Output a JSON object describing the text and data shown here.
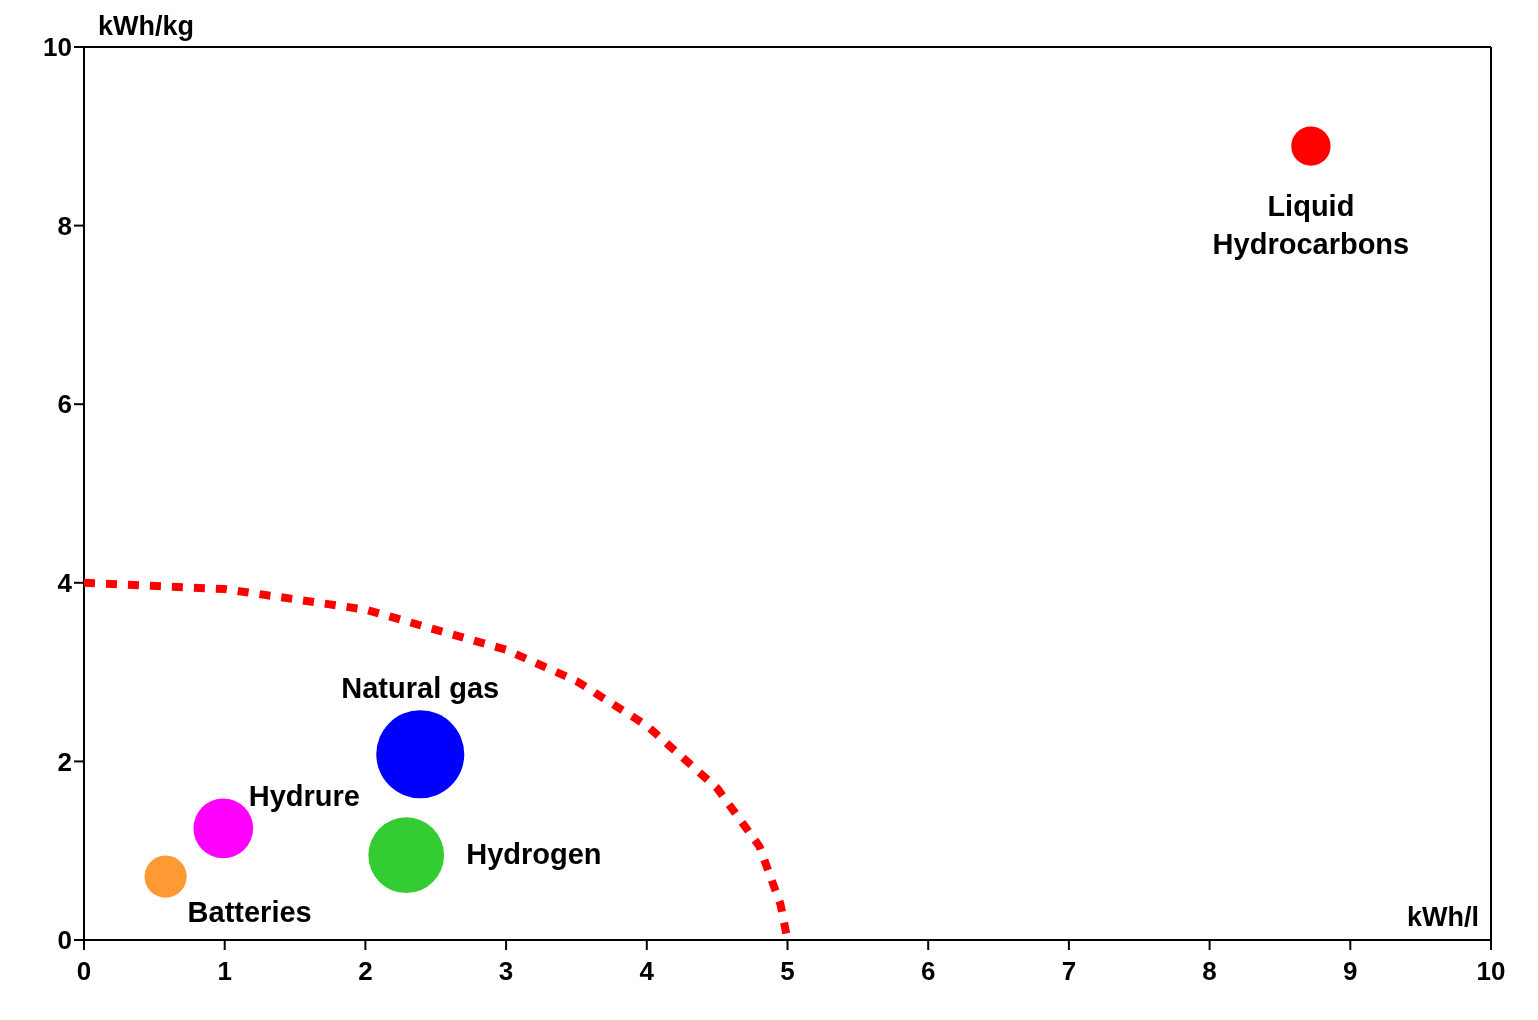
{
  "chart_data": {
    "type": "bubble",
    "xlabel": "kWh/l",
    "ylabel": "kWh/kg",
    "xlim": [
      0,
      10
    ],
    "ylim": [
      0,
      10
    ],
    "xticks": [
      0,
      1,
      2,
      3,
      4,
      5,
      6,
      7,
      8,
      9,
      10
    ],
    "yticks": [
      0,
      2,
      4,
      6,
      8,
      10
    ],
    "series": [
      {
        "name": "Liquid Hydrocarbons",
        "color": "#ff0000",
        "x": [
          8.72
        ],
        "values": [
          8.89
        ],
        "sizes": [
          0.2
        ]
      },
      {
        "name": "Natural gas",
        "color": "#0000ff",
        "x": [
          2.39
        ],
        "values": [
          2.08
        ],
        "sizes": [
          1
        ]
      },
      {
        "name": "Hydrure",
        "color": "#ff00ff",
        "x": [
          0.99
        ],
        "values": [
          1.25
        ],
        "sizes": [
          0.46
        ]
      },
      {
        "name": "Hydrogen",
        "color": "#33cc33",
        "x": [
          2.29
        ],
        "values": [
          0.95
        ],
        "sizes": [
          0.74
        ]
      },
      {
        "name": "Batteries",
        "color": "#ff9933",
        "x": [
          0.58
        ],
        "values": [
          0.71
        ],
        "sizes": [
          0.23
        ]
      },
      {
        "type": "line",
        "color": "#ff0000",
        "line_style": "dashed",
        "marker": "none",
        "x": [
          0,
          1,
          2,
          3,
          3.5,
          4,
          4.5,
          4.8,
          4.95,
          5
        ],
        "values": [
          4.0,
          3.93,
          3.7,
          3.25,
          2.9,
          2.4,
          1.7,
          1.05,
          0.4,
          0
        ]
      }
    ]
  }
}
